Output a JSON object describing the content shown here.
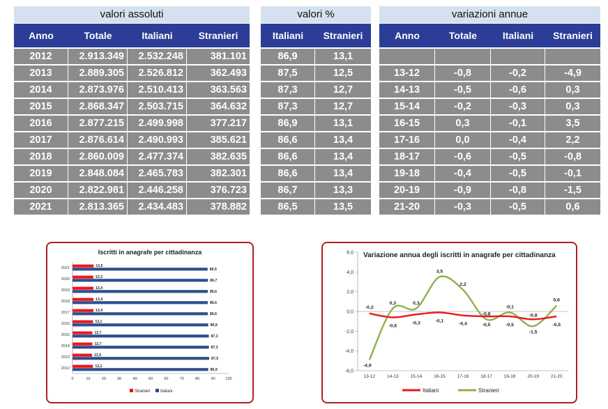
{
  "headers": {
    "group_abs": "valori assoluti",
    "group_pct": "valori %",
    "group_var": "variazioni annue",
    "abs_cols": [
      "Anno",
      "Totale",
      "Italiani",
      "Stranieri"
    ],
    "pct_cols": [
      "Italiani",
      "Stranieri"
    ],
    "var_cols": [
      "Anno",
      "Totale",
      "Italiani",
      "Stranieri"
    ]
  },
  "rows": [
    {
      "anno": "2012",
      "totale": "2.913.349",
      "italiani": "2.532.248",
      "stranieri": "381.101",
      "pct_it": "86,9",
      "pct_st": "13,1",
      "v_anno": "",
      "v_tot": "",
      "v_it": "",
      "v_st": ""
    },
    {
      "anno": "2013",
      "totale": "2.889.305",
      "italiani": "2.526.812",
      "stranieri": "362.493",
      "pct_it": "87,5",
      "pct_st": "12,5",
      "v_anno": "13-12",
      "v_tot": "-0,8",
      "v_it": "-0,2",
      "v_st": "-4,9"
    },
    {
      "anno": "2014",
      "totale": "2.873.976",
      "italiani": "2.510.413",
      "stranieri": "363.563",
      "pct_it": "87,3",
      "pct_st": "12,7",
      "v_anno": "14-13",
      "v_tot": "-0,5",
      "v_it": "-0,6",
      "v_st": "0,3"
    },
    {
      "anno": "2015",
      "totale": "2.868.347",
      "italiani": "2.503.715",
      "stranieri": "364.632",
      "pct_it": "87,3",
      "pct_st": "12,7",
      "v_anno": "15-14",
      "v_tot": "-0,2",
      "v_it": "-0,3",
      "v_st": "0,3"
    },
    {
      "anno": "2016",
      "totale": "2.877.215",
      "italiani": "2.499.998",
      "stranieri": "377.217",
      "pct_it": "86,9",
      "pct_st": "13,1",
      "v_anno": "16-15",
      "v_tot": "0,3",
      "v_it": "-0,1",
      "v_st": "3,5"
    },
    {
      "anno": "2017",
      "totale": "2.876.614",
      "italiani": "2.490.993",
      "stranieri": "385.621",
      "pct_it": "86,6",
      "pct_st": "13,4",
      "v_anno": "17-16",
      "v_tot": "0,0",
      "v_it": "-0,4",
      "v_st": "2,2"
    },
    {
      "anno": "2018",
      "totale": "2.860.009",
      "italiani": "2.477.374",
      "stranieri": "382.635",
      "pct_it": "86,6",
      "pct_st": "13,4",
      "v_anno": "18-17",
      "v_tot": "-0,6",
      "v_it": "-0,5",
      "v_st": "-0,8"
    },
    {
      "anno": "2019",
      "totale": "2.848.084",
      "italiani": "2.465.783",
      "stranieri": "382.301",
      "pct_it": "86,6",
      "pct_st": "13,4",
      "v_anno": "19-18",
      "v_tot": "-0,4",
      "v_it": "-0,5",
      "v_st": "-0,1"
    },
    {
      "anno": "2020",
      "totale": "2.822.981",
      "italiani": "2.446.258",
      "stranieri": "376.723",
      "pct_it": "86,7",
      "pct_st": "13,3",
      "v_anno": "20-19",
      "v_tot": "-0,9",
      "v_it": "-0,8",
      "v_st": "-1,5"
    },
    {
      "anno": "2021",
      "totale": "2.813.365",
      "italiani": "2.434.483",
      "stranieri": "378.882",
      "pct_it": "86,5",
      "pct_st": "13,5",
      "v_anno": "21-20",
      "v_tot": "-0,3",
      "v_it": "-0,5",
      "v_st": "0,6"
    }
  ],
  "chart_data": [
    {
      "type": "bar",
      "orientation": "horizontal",
      "stacked": false,
      "title": "Iscritti in anagrafe per cittadinanza",
      "categories": [
        "2012",
        "2013",
        "2014",
        "2015",
        "2016",
        "2017",
        "2018",
        "2019",
        "2020",
        "2021"
      ],
      "series": [
        {
          "name": "Stranieri",
          "values": [
            13.1,
            12.5,
            12.7,
            12.7,
            13.1,
            13.4,
            13.4,
            13.4,
            13.3,
            13.5
          ],
          "labels": [
            "13,1",
            "12,5",
            "12,7",
            "12,7",
            "13,1",
            "13,4",
            "13,4",
            "13,4",
            "13,3",
            "13,5"
          ],
          "color": "#e8181f"
        },
        {
          "name": "Italiani",
          "values": [
            86.9,
            87.5,
            87.3,
            87.3,
            86.9,
            86.6,
            86.6,
            86.6,
            86.7,
            86.5
          ],
          "labels": [
            "86,9",
            "87,5",
            "87,3",
            "87,3",
            "86,9",
            "86,6",
            "86,6",
            "86,6",
            "86,7",
            "86,5"
          ],
          "color": "#2e4e8f"
        }
      ],
      "xlim": [
        0,
        100
      ],
      "xticks": [
        "0",
        "10",
        "20",
        "30",
        "40",
        "50",
        "60",
        "70",
        "80",
        "90",
        "100"
      ],
      "legend": "bottom",
      "grid": false
    },
    {
      "type": "line",
      "title": "Variazione annua degli iscritti in anagrafe per cittadinanza",
      "categories": [
        "13-12",
        "14-13",
        "15-14",
        "16-15",
        "17-16",
        "18-17",
        "19-18",
        "20-19",
        "21-20"
      ],
      "series": [
        {
          "name": "Italiani",
          "values": [
            -0.2,
            -0.6,
            -0.3,
            -0.1,
            -0.4,
            -0.5,
            -0.5,
            -0.8,
            -0.5
          ],
          "labels": [
            "-0,2",
            "-0,6",
            "-0,3",
            "-0,1",
            "-0,4",
            "-0,5",
            "-0,5",
            "-0,8",
            "-0,5"
          ],
          "color": "#e8181f"
        },
        {
          "name": "Stranieri",
          "values": [
            -4.9,
            0.3,
            0.3,
            3.5,
            2.2,
            -0.8,
            -0.1,
            -1.5,
            0.6
          ],
          "labels": [
            "-4,9",
            "0,3",
            "0,3",
            "3,5",
            "2,2",
            "-0,8",
            "-0,1",
            "-1,5",
            "0,6"
          ],
          "color": "#8db04b"
        }
      ],
      "ylim": [
        -6,
        6
      ],
      "yticks": [
        "-6,0",
        "-4,0",
        "-2,0",
        "0,0",
        "2,0",
        "4,0",
        "6,0"
      ],
      "legend": "bottom",
      "grid": false
    }
  ]
}
